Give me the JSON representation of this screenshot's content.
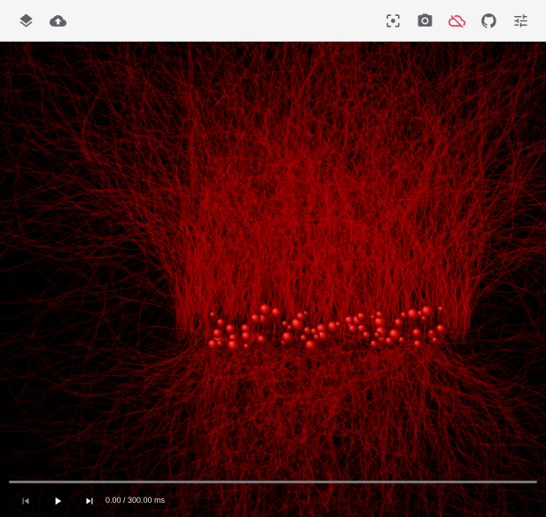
{
  "toolbar": {
    "left_icons": [
      "layers-icon",
      "cloud-upload-icon"
    ],
    "right_icons": [
      "focus-center-icon",
      "camera-icon",
      "cloud-off-icon",
      "github-icon",
      "tune-icon"
    ],
    "icon_color": "#5f6368",
    "alert_icon_color": "#e8384f"
  },
  "viewport": {
    "background": "#000000",
    "neuron_color": "#b30000"
  },
  "playback": {
    "time_display": "0.00 / 300.00 ms",
    "progress": 0
  }
}
